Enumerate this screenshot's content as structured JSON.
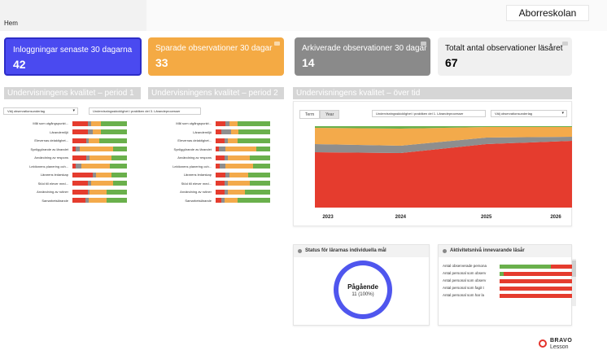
{
  "header": {
    "breadcrumb": "Hem",
    "school": "Aborreskolan"
  },
  "cards": [
    {
      "title": "Inloggningar senaste 30 dagarna",
      "value": "42"
    },
    {
      "title": "Sparade observationer 30 dagar",
      "value": "33"
    },
    {
      "title": "Arkiverade observationer 30 dagar",
      "value": "14"
    },
    {
      "title": "Totalt antal observationer läsåret",
      "value": "67"
    }
  ],
  "sections": {
    "period1": "Undervisningens kvalitet – period 1",
    "period2": "Undervisningens kvalitet – period 2",
    "overtime": "Undervisningens kvalitet – över tid"
  },
  "filters": {
    "period1_select": "Välj observationsunderlag",
    "period2_select": "Undervisningsskicklighet i praktiken del 3. Lärandeprocesser",
    "time_select1": "Undervisningsskicklighet i praktiken del 1. Lärandeprocesser",
    "time_select2": "Välj observationsunderlag"
  },
  "colors": {
    "red": "#e53c2e",
    "gray": "#8e8e8e",
    "orange": "#f3aa4b",
    "green": "#6ab04c",
    "blue": "#4f56ee"
  },
  "quality_labels": [
    "Mål som utgångspunkt...",
    "Lärandemiljö",
    "Elevernas delaktighet...",
    "Synliggörande av lärandet",
    "Användning av respons",
    "Lektionens planering och...",
    "Lärarens ledarskap",
    "Stöd till elever med...",
    "Användning av rutiner",
    "Samarbetslärande"
  ],
  "quality_period1": [
    [
      0.28,
      0.06,
      0.18,
      0.48
    ],
    [
      0.28,
      0.1,
      0.14,
      0.48
    ],
    [
      0.26,
      0.04,
      0.2,
      0.5
    ],
    [
      0.06,
      0.08,
      0.6,
      0.26
    ],
    [
      0.26,
      0.06,
      0.4,
      0.28
    ],
    [
      0.06,
      0.1,
      0.52,
      0.32
    ],
    [
      0.38,
      0.06,
      0.28,
      0.28
    ],
    [
      0.28,
      0.06,
      0.4,
      0.26
    ],
    [
      0.28,
      0.04,
      0.3,
      0.38
    ],
    [
      0.24,
      0.06,
      0.32,
      0.38
    ]
  ],
  "quality_period2": [
    [
      0.18,
      0.08,
      0.14,
      0.6
    ],
    [
      0.1,
      0.18,
      0.14,
      0.58
    ],
    [
      0.16,
      0.06,
      0.18,
      0.6
    ],
    [
      0.06,
      0.12,
      0.56,
      0.26
    ],
    [
      0.16,
      0.06,
      0.4,
      0.38
    ],
    [
      0.08,
      0.1,
      0.5,
      0.32
    ],
    [
      0.18,
      0.08,
      0.34,
      0.4
    ],
    [
      0.16,
      0.06,
      0.4,
      0.38
    ],
    [
      0.16,
      0.06,
      0.32,
      0.46
    ],
    [
      0.1,
      0.06,
      0.24,
      0.6
    ]
  ],
  "time_chart": {
    "tabs": [
      "Term",
      "Year"
    ],
    "active_tab": "Year"
  },
  "chart_data": {
    "type": "area",
    "x": [
      "2023",
      "2024",
      "2025",
      "2026"
    ],
    "stacked": true,
    "normalized": true,
    "series": [
      {
        "color": "#e53c2e",
        "values": [
          0.68,
          0.67,
          0.78,
          0.82
        ]
      },
      {
        "color": "#8e8e8e",
        "values": [
          0.1,
          0.09,
          0.08,
          0.05
        ]
      },
      {
        "color": "#f3aa4b",
        "values": [
          0.2,
          0.21,
          0.13,
          0.12
        ]
      },
      {
        "color": "#6ab04c",
        "values": [
          0.02,
          0.03,
          0.01,
          0.01
        ]
      }
    ]
  },
  "status_panel": {
    "title": "Status för lärarnas individuella mål",
    "center_title": "Pågående",
    "center_sub": "11 (100%)",
    "progress": 1.0
  },
  "activity_panel": {
    "title": "Aktivitetsnivå innevarande läsår",
    "rows": [
      {
        "label": "Antal observerade persona",
        "green": 0.7,
        "red": 0.3
      },
      {
        "label": "Antal personal som observ",
        "green": 0.05,
        "red": 0.95
      },
      {
        "label": "Antal personal som observ",
        "green": 0.0,
        "red": 1.0
      },
      {
        "label": "Antal personal som fagit t",
        "green": 0.0,
        "red": 1.0
      },
      {
        "label": "Antal personal som har la",
        "green": 0.0,
        "red": 1.0
      }
    ]
  },
  "logo": {
    "line1": "BRAVO",
    "line2": "Lesson"
  }
}
